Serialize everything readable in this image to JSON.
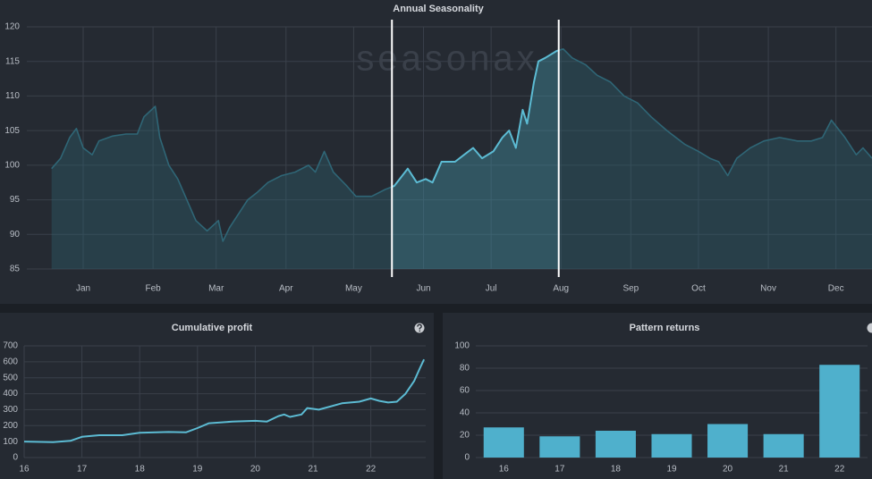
{
  "chart_data": [
    {
      "type": "line",
      "title": "Annual Seasonality",
      "watermark": "seasonax",
      "x": [
        1,
        5,
        9,
        12,
        15,
        19,
        22,
        28,
        34,
        39,
        42,
        47,
        49,
        53,
        57,
        61,
        65,
        70,
        75,
        77,
        80,
        84,
        88,
        92,
        97,
        103,
        109,
        115,
        118,
        122,
        126,
        132,
        136,
        140,
        143,
        149,
        153,
        159,
        163,
        167,
        170,
        174,
        180,
        184,
        188,
        192,
        197,
        201,
        204,
        207,
        210,
        212,
        215,
        217,
        220,
        225,
        228,
        232,
        238,
        243,
        249,
        255,
        261,
        267,
        274,
        282,
        288,
        293,
        297,
        301,
        305,
        311,
        317,
        324,
        332,
        338,
        343,
        347,
        353,
        358,
        361,
        365
      ],
      "values": [
        99.5,
        101,
        104,
        105.3,
        102.5,
        101.5,
        103.5,
        104.2,
        104.5,
        104.5,
        107,
        108.5,
        104,
        100,
        98,
        95,
        92,
        90.5,
        92,
        89,
        91,
        93,
        95,
        96,
        97.5,
        98.5,
        99,
        100,
        99,
        102,
        99,
        97,
        95.5,
        95.5,
        95.5,
        96.5,
        97,
        99.5,
        97.5,
        98,
        97.5,
        100.5,
        100.5,
        101.5,
        102.5,
        101,
        102,
        104,
        105,
        102.5,
        108,
        106,
        112,
        115,
        115.5,
        116.5,
        116.8,
        115.5,
        114.5,
        113,
        112,
        110,
        109,
        107,
        105,
        103,
        102,
        101,
        100.5,
        98.5,
        101,
        102.5,
        103.5,
        104,
        103.5,
        103.5,
        104,
        106.5,
        104,
        101.5,
        102.5,
        101
      ],
      "xlim": [
        -10,
        365
      ],
      "xticks": [
        {
          "value": 15,
          "label": "Jan"
        },
        {
          "value": 46,
          "label": "Feb"
        },
        {
          "value": 74,
          "label": "Mar"
        },
        {
          "value": 105,
          "label": "Apr"
        },
        {
          "value": 135,
          "label": "May"
        },
        {
          "value": 166,
          "label": "Jun"
        },
        {
          "value": 196,
          "label": "Jul"
        },
        {
          "value": 227,
          "label": "Aug"
        },
        {
          "value": 258,
          "label": "Sep"
        },
        {
          "value": 288,
          "label": "Oct"
        },
        {
          "value": 319,
          "label": "Nov"
        },
        {
          "value": 349,
          "label": "Dec"
        }
      ],
      "ylim": [
        85,
        120
      ],
      "yticks": [
        85,
        90,
        95,
        100,
        105,
        110,
        115,
        120
      ],
      "highlight": [
        152,
        226
      ],
      "color": "#2f6676",
      "highlight_color": "#5cbbd3",
      "grid": true
    },
    {
      "type": "line",
      "title": "Cumulative profit",
      "x": [
        16,
        16.5,
        16.8,
        17,
        17.3,
        17.7,
        18,
        18.5,
        18.8,
        19,
        19.2,
        19.6,
        20,
        20.2,
        20.4,
        20.5,
        20.6,
        20.8,
        20.9,
        21.1,
        21.3,
        21.5,
        21.8,
        22,
        22.15,
        22.3,
        22.45,
        22.6,
        22.75,
        22.85,
        22.92
      ],
      "values": [
        100,
        97,
        105,
        130,
        140,
        140,
        155,
        160,
        158,
        185,
        215,
        225,
        230,
        225,
        260,
        270,
        255,
        270,
        310,
        300,
        320,
        340,
        350,
        370,
        355,
        345,
        350,
        400,
        480,
        560,
        615
      ],
      "xlim": [
        16,
        22.95
      ],
      "xticks": [
        16,
        17,
        18,
        19,
        20,
        21,
        22
      ],
      "ylim": [
        0,
        700
      ],
      "yticks": [
        0,
        100,
        200,
        300,
        400,
        500,
        600,
        700
      ],
      "color": "#5cbbd3",
      "grid": true
    },
    {
      "type": "bar",
      "title": "Pattern returns",
      "categories": [
        "16",
        "17",
        "18",
        "19",
        "20",
        "21",
        "22"
      ],
      "values": [
        27,
        19,
        24,
        21,
        30,
        21,
        83
      ],
      "ylim": [
        0,
        100
      ],
      "yticks": [
        0,
        20,
        40,
        60,
        80,
        100
      ],
      "color": "#4fb0cc",
      "grid": true
    }
  ]
}
